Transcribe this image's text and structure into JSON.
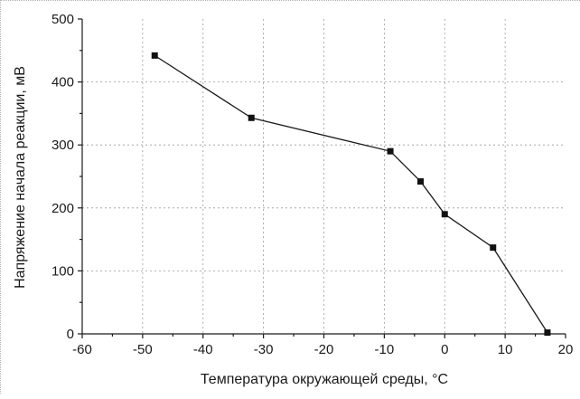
{
  "chart_data": {
    "type": "line",
    "title": "",
    "xlabel": "Температура окружающей среды, °C",
    "ylabel": "Напряжение начала реакции, мВ",
    "xlim": [
      -60,
      20
    ],
    "ylim": [
      0,
      500
    ],
    "xticks": [
      -60,
      -50,
      -40,
      -30,
      -20,
      -10,
      0,
      10,
      20
    ],
    "yticks": [
      0,
      100,
      200,
      300,
      400,
      500
    ],
    "xtick_labels": [
      "-60",
      "-50",
      "-40",
      "-30",
      "-20",
      "-10",
      "0",
      "10",
      "20"
    ],
    "ytick_labels": [
      "0",
      "100",
      "200",
      "300",
      "400",
      "500"
    ],
    "grid": true,
    "legend": "none",
    "marker": "square",
    "series": [
      {
        "color": "#111111",
        "x": [
          -48,
          -32,
          -9,
          -4,
          0,
          8,
          17
        ],
        "y": [
          442,
          343,
          290,
          242,
          190,
          137,
          2
        ]
      }
    ]
  }
}
